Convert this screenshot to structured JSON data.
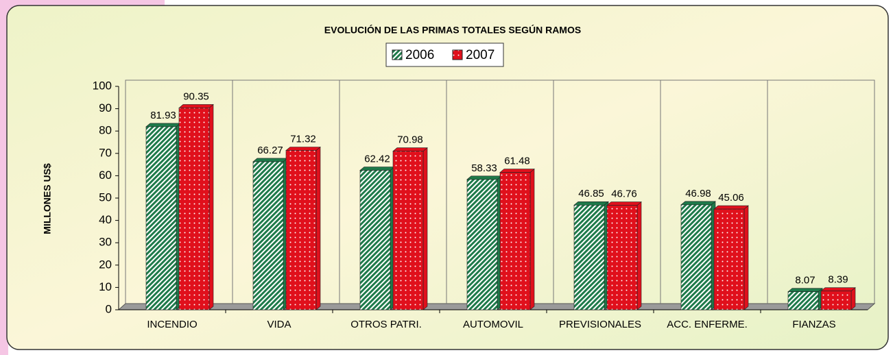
{
  "chart_data": {
    "type": "bar",
    "title": "EVOLUCIÓN DE LAS PRIMAS TOTALES SEGÚN RAMOS",
    "y_label": "MILLONES US$",
    "categories": [
      "INCENDIO",
      "VIDA",
      "OTROS PATRI.",
      "AUTOMOVIL",
      "PREVISIONALES",
      "ACC. ENFERME.",
      "FIANZAS"
    ],
    "series": [
      {
        "name": "2006",
        "color": "#1e7a4a",
        "values": [
          81.93,
          66.27,
          62.42,
          58.33,
          46.85,
          46.98,
          8.07
        ]
      },
      {
        "name": "2007",
        "color": "#e0101c",
        "values": [
          90.35,
          71.32,
          70.98,
          61.48,
          46.76,
          45.06,
          8.39
        ]
      }
    ],
    "ylim": [
      0,
      100
    ],
    "yticks": [
      0,
      10,
      20,
      30,
      40,
      50,
      60,
      70,
      80,
      90,
      100
    ],
    "legend": "top"
  }
}
